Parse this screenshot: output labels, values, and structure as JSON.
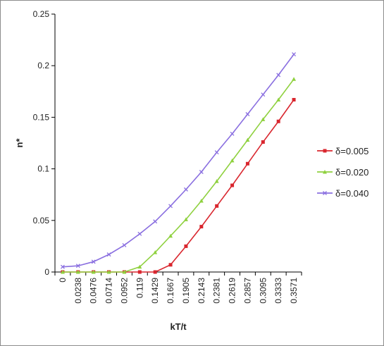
{
  "chart_data": {
    "type": "line",
    "title": "",
    "xlabel": "kT/t",
    "ylabel": "n*",
    "x_categories": [
      "0",
      "0.0238",
      "0.0476",
      "0.0714",
      "0.0952",
      "0.119",
      "0.1429",
      "0.1667",
      "0.1905",
      "0.2143",
      "0.2381",
      "0.2619",
      "0.2857",
      "0.3095",
      "0.3333",
      "0.3571"
    ],
    "ylim": [
      0,
      0.25
    ],
    "y_ticks": [
      0,
      0.05,
      0.1,
      0.15,
      0.2,
      0.25
    ],
    "y_tick_labels": [
      "0",
      "0.05",
      "0.1",
      "0.15",
      "0.2",
      "0.25"
    ],
    "grid": false,
    "legend_position": "right",
    "series": [
      {
        "name": "δ=0.005",
        "color": "#d9262e",
        "marker": "square",
        "values": [
          0,
          0,
          0,
          0,
          0,
          0,
          0,
          0.007,
          0.025,
          0.044,
          0.064,
          0.084,
          0.105,
          0.126,
          0.146,
          0.167
        ]
      },
      {
        "name": "δ=0.020",
        "color": "#8fd13f",
        "marker": "triangle",
        "values": [
          0,
          0,
          0,
          0,
          0,
          0.005,
          0.019,
          0.035,
          0.051,
          0.069,
          0.088,
          0.108,
          0.128,
          0.148,
          0.167,
          0.187
        ]
      },
      {
        "name": "δ=0.040",
        "color": "#8a6fe0",
        "marker": "x",
        "values": [
          0.005,
          0.006,
          0.01,
          0.017,
          0.026,
          0.037,
          0.049,
          0.064,
          0.08,
          0.097,
          0.116,
          0.134,
          0.153,
          0.172,
          0.191,
          0.211
        ]
      }
    ]
  }
}
